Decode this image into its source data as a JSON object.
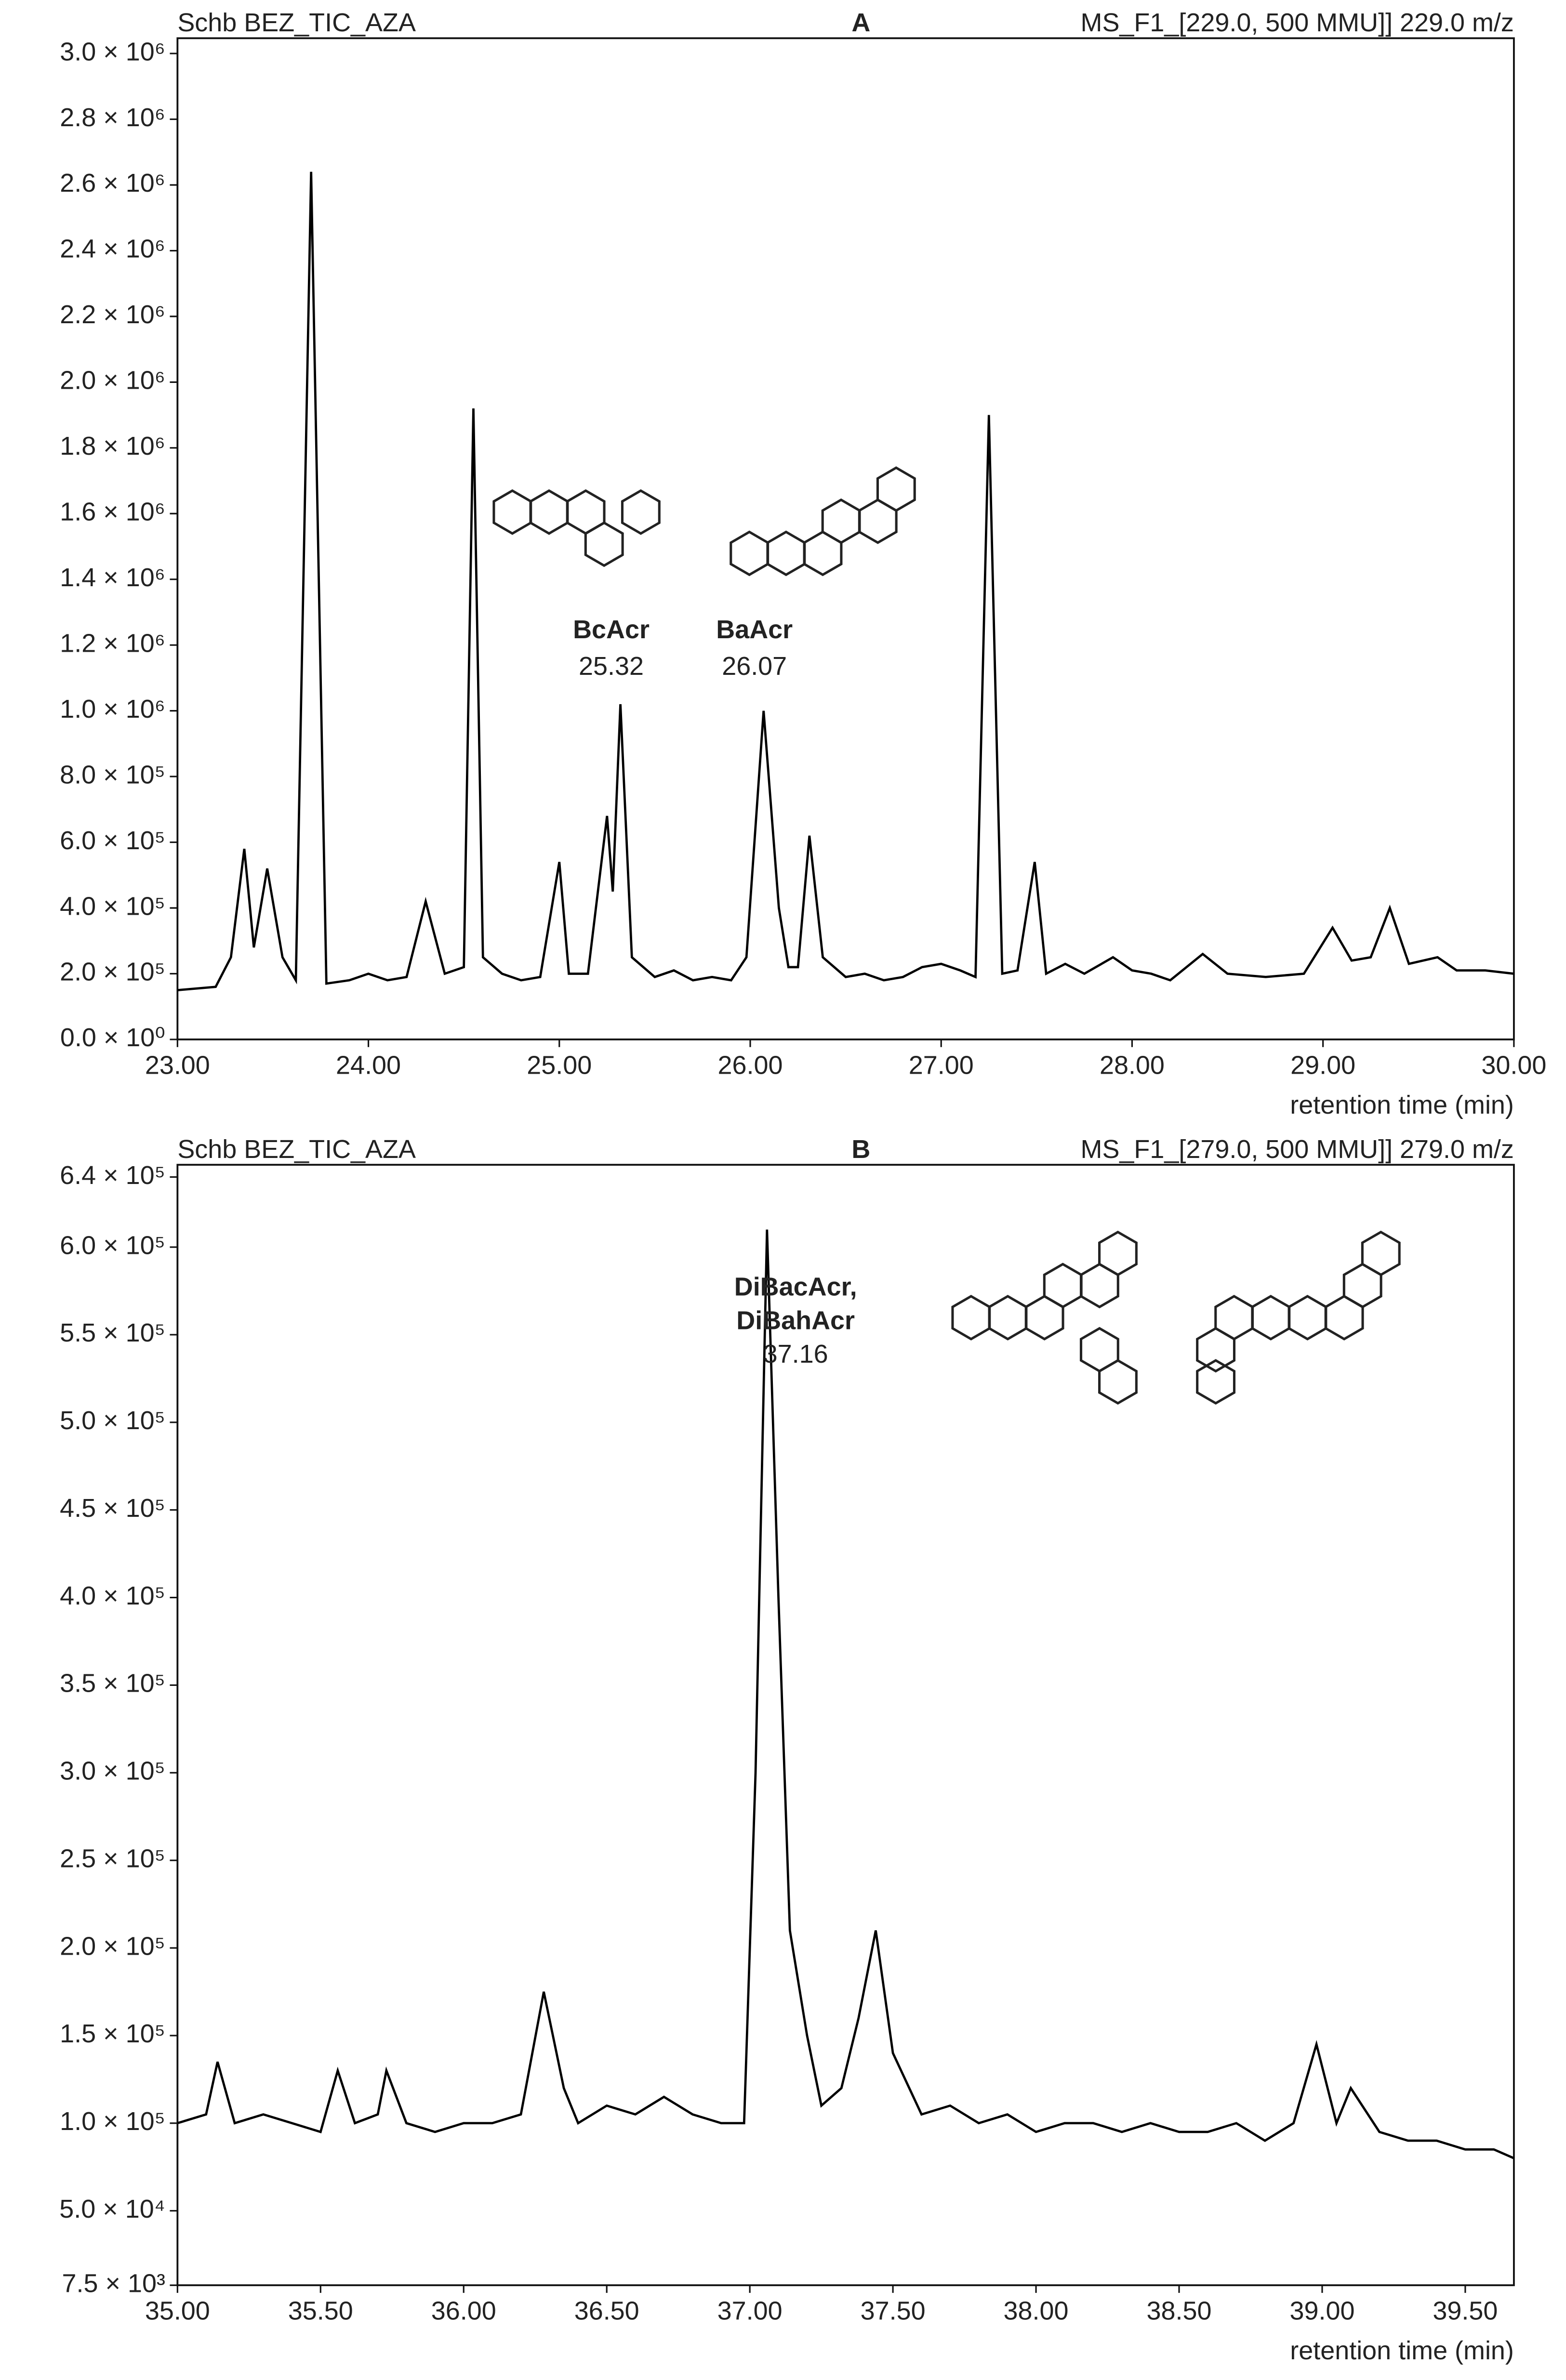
{
  "chart_data": [
    {
      "type": "line",
      "header_left": "Schb BEZ_TIC_AZA",
      "title": "A",
      "header_right": "MS_F1_[229.0, 500 MMU]] 229.0 m/z",
      "x_label": "retention time (min)",
      "xlim": [
        23,
        30
      ],
      "xticks": [
        {
          "value": 23,
          "label": "23.00"
        },
        {
          "value": 24,
          "label": "24.00"
        },
        {
          "value": 25,
          "label": "25.00"
        },
        {
          "value": 26,
          "label": "26.00"
        },
        {
          "value": 27,
          "label": "27.00"
        },
        {
          "value": 28,
          "label": "28.00"
        },
        {
          "value": 29,
          "label": "29.00"
        },
        {
          "value": 30,
          "label": "30.00"
        }
      ],
      "ylim": [
        0,
        3000000
      ],
      "yticks": [
        {
          "value": 0,
          "label": "0.0 × 10⁰"
        },
        {
          "value": 200000,
          "label": "2.0 × 10⁵"
        },
        {
          "value": 400000,
          "label": "4.0 × 10⁵"
        },
        {
          "value": 600000,
          "label": "6.0 × 10⁵"
        },
        {
          "value": 800000,
          "label": "8.0 × 10⁵"
        },
        {
          "value": 1000000,
          "label": "1.0 × 10⁶"
        },
        {
          "value": 1200000,
          "label": "1.2 × 10⁶"
        },
        {
          "value": 1400000,
          "label": "1.4 × 10⁶"
        },
        {
          "value": 1600000,
          "label": "1.6 × 10⁶"
        },
        {
          "value": 1800000,
          "label": "1.8 × 10⁶"
        },
        {
          "value": 2000000,
          "label": "2.0 × 10⁶"
        },
        {
          "value": 2200000,
          "label": "2.2 × 10⁶"
        },
        {
          "value": 2400000,
          "label": "2.4 × 10⁶"
        },
        {
          "value": 2600000,
          "label": "2.6 × 10⁶"
        },
        {
          "value": 2800000,
          "label": "2.8 × 10⁶"
        },
        {
          "value": 3000000,
          "label": "3.0 × 10⁶"
        }
      ],
      "x": [
        23.0,
        23.2,
        23.28,
        23.35,
        23.4,
        23.47,
        23.55,
        23.62,
        23.7,
        23.78,
        23.9,
        24.0,
        24.1,
        24.2,
        24.3,
        24.4,
        24.5,
        24.55,
        24.6,
        24.7,
        24.8,
        24.9,
        25.0,
        25.05,
        25.15,
        25.25,
        25.28,
        25.32,
        25.38,
        25.5,
        25.6,
        25.7,
        25.8,
        25.9,
        25.98,
        26.07,
        26.15,
        26.2,
        26.25,
        26.31,
        26.38,
        26.5,
        26.6,
        26.7,
        26.8,
        26.9,
        27.0,
        27.1,
        27.18,
        27.25,
        27.32,
        27.4,
        27.49,
        27.55,
        27.65,
        27.75,
        27.9,
        28.0,
        28.1,
        28.2,
        28.37,
        28.5,
        28.7,
        28.9,
        29.05,
        29.15,
        29.25,
        29.35,
        29.45,
        29.6,
        29.7,
        29.85,
        30.0
      ],
      "series": [
        {
          "color": "#000000",
          "values": [
            150000,
            160000,
            250000,
            580000,
            280000,
            520000,
            250000,
            180000,
            2640000,
            170000,
            180000,
            200000,
            180000,
            190000,
            420000,
            200000,
            220000,
            1920000,
            250000,
            200000,
            180000,
            190000,
            540000,
            200000,
            200000,
            680000,
            450000,
            1020000,
            250000,
            190000,
            210000,
            180000,
            190000,
            180000,
            250000,
            1000000,
            400000,
            220000,
            220000,
            620000,
            250000,
            190000,
            200000,
            180000,
            190000,
            220000,
            230000,
            210000,
            190000,
            1900000,
            200000,
            210000,
            540000,
            200000,
            230000,
            200000,
            250000,
            210000,
            200000,
            180000,
            260000,
            200000,
            190000,
            200000,
            340000,
            240000,
            250000,
            400000,
            230000,
            250000,
            210000,
            210000,
            200000
          ]
        }
      ],
      "annotations": [
        {
          "text": "BcAcr",
          "value": 25.32
        },
        {
          "text": "BaAcr",
          "value": 26.07
        }
      ]
    },
    {
      "type": "line",
      "header_left": "Schb BEZ_TIC_AZA",
      "title": "B",
      "header_right": "MS_F1_[279.0, 500 MMU]] 279.0 m/z",
      "x_label": "retention time (min)",
      "xlim": [
        35,
        39.67
      ],
      "xticks": [
        {
          "value": 35,
          "label": "35.00"
        },
        {
          "value": 35.5,
          "label": "35.50"
        },
        {
          "value": 36,
          "label": "36.00"
        },
        {
          "value": 36.5,
          "label": "36.50"
        },
        {
          "value": 37,
          "label": "37.00"
        },
        {
          "value": 37.5,
          "label": "37.50"
        },
        {
          "value": 38,
          "label": "38.00"
        },
        {
          "value": 38.5,
          "label": "38.50"
        },
        {
          "value": 39,
          "label": "39.00"
        },
        {
          "value": 39.5,
          "label": "39.50"
        }
      ],
      "ylim": [
        7500,
        640000
      ],
      "yticks": [
        {
          "value": 7500,
          "label": "7.5 × 10³"
        },
        {
          "value": 50000,
          "label": "5.0 × 10⁴"
        },
        {
          "value": 100000,
          "label": "1.0 × 10⁵"
        },
        {
          "value": 150000,
          "label": "1.5 × 10⁵"
        },
        {
          "value": 200000,
          "label": "2.0 × 10⁵"
        },
        {
          "value": 250000,
          "label": "2.5 × 10⁵"
        },
        {
          "value": 300000,
          "label": "3.0 × 10⁵"
        },
        {
          "value": 350000,
          "label": "3.5 × 10⁵"
        },
        {
          "value": 400000,
          "label": "4.0 × 10⁵"
        },
        {
          "value": 450000,
          "label": "4.5 × 10⁵"
        },
        {
          "value": 500000,
          "label": "5.0 × 10⁵"
        },
        {
          "value": 550000,
          "label": "5.5 × 10⁵"
        },
        {
          "value": 600000,
          "label": "6.0 × 10⁵"
        },
        {
          "value": 640000,
          "label": "6.4 × 10⁵"
        }
      ],
      "x": [
        35.0,
        35.1,
        35.14,
        35.2,
        35.3,
        35.4,
        35.5,
        35.56,
        35.62,
        35.7,
        35.73,
        35.8,
        35.9,
        36.0,
        36.1,
        36.2,
        36.28,
        36.35,
        36.4,
        36.5,
        36.6,
        36.7,
        36.8,
        36.9,
        36.98,
        37.02,
        37.06,
        37.1,
        37.14,
        37.2,
        37.25,
        37.32,
        37.38,
        37.44,
        37.5,
        37.6,
        37.7,
        37.8,
        37.9,
        38.0,
        38.1,
        38.2,
        38.3,
        38.4,
        38.5,
        38.6,
        38.7,
        38.8,
        38.9,
        38.98,
        39.05,
        39.1,
        39.2,
        39.3,
        39.4,
        39.5,
        39.6,
        39.67
      ],
      "series": [
        {
          "color": "#000000",
          "values": [
            100000,
            105000,
            135000,
            100000,
            105000,
            100000,
            95000,
            130000,
            100000,
            105000,
            130000,
            100000,
            95000,
            100000,
            100000,
            105000,
            175000,
            120000,
            100000,
            110000,
            105000,
            115000,
            105000,
            100000,
            100000,
            300000,
            610000,
            400000,
            210000,
            150000,
            110000,
            120000,
            160000,
            210000,
            140000,
            105000,
            110000,
            100000,
            105000,
            95000,
            100000,
            100000,
            95000,
            100000,
            95000,
            95000,
            100000,
            90000,
            100000,
            145000,
            100000,
            120000,
            95000,
            90000,
            90000,
            85000,
            85000,
            80000
          ]
        }
      ],
      "annotations": [
        {
          "text": "DiBacAcr,",
          "value": 37.16
        },
        {
          "text": "DiBahAcr"
        }
      ]
    }
  ]
}
